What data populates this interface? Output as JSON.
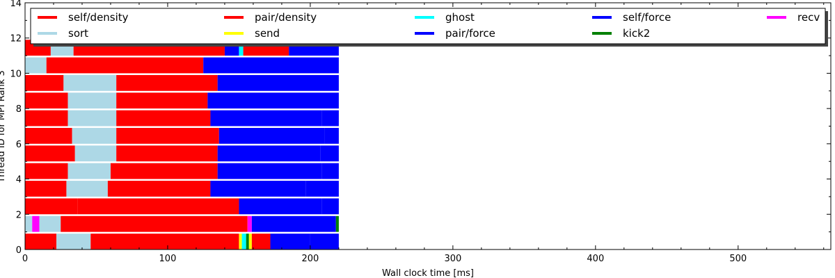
{
  "chart_data": {
    "type": "bar",
    "subtype": "thread-timeline",
    "xlabel": "Wall clock time [ms]",
    "ylabel": "Thread ID for MPI Rank 3",
    "xlim": [
      0,
      565
    ],
    "ylim": [
      0,
      14
    ],
    "x_ticks": [
      "0",
      "100",
      "200",
      "300",
      "400",
      "500"
    ],
    "y_ticks": [
      "0",
      "2",
      "4",
      "6",
      "8",
      "10",
      "12",
      "14"
    ],
    "legend_placement": "top",
    "legend": [
      {
        "name": "self/density",
        "color": "#ff0000"
      },
      {
        "name": "sort",
        "color": "#add8e6"
      },
      {
        "name": "pair/density",
        "color": "#ff0000"
      },
      {
        "name": "send",
        "color": "#ffff00"
      },
      {
        "name": "ghost",
        "color": "#00ffff"
      },
      {
        "name": "pair/force",
        "color": "#0000ff"
      },
      {
        "name": "self/force",
        "color": "#0000ff"
      },
      {
        "name": "kick2",
        "color": "#008000"
      },
      {
        "name": "recv",
        "color": "#ff00ff"
      }
    ],
    "thread_segments": [
      {
        "thread": 0,
        "segments": [
          {
            "start": 0,
            "end": 22,
            "task": "self/density"
          },
          {
            "start": 22,
            "end": 46,
            "task": "sort"
          },
          {
            "start": 46,
            "end": 150,
            "task": "pair/density"
          },
          {
            "start": 150,
            "end": 152,
            "task": "send"
          },
          {
            "start": 152,
            "end": 155,
            "task": "ghost"
          },
          {
            "start": 155,
            "end": 157,
            "task": "kick2"
          },
          {
            "start": 157,
            "end": 159,
            "task": "send"
          },
          {
            "start": 159,
            "end": 172,
            "task": "pair/density"
          },
          {
            "start": 172,
            "end": 200,
            "task": "pair/force"
          },
          {
            "start": 200,
            "end": 220,
            "task": "self/force"
          }
        ]
      },
      {
        "thread": 1,
        "segments": [
          {
            "start": 0,
            "end": 5,
            "task": "sort"
          },
          {
            "start": 5,
            "end": 10,
            "task": "recv"
          },
          {
            "start": 10,
            "end": 25,
            "task": "sort"
          },
          {
            "start": 25,
            "end": 156,
            "task": "pair/density"
          },
          {
            "start": 156,
            "end": 159,
            "task": "recv"
          },
          {
            "start": 159,
            "end": 218,
            "task": "pair/force"
          },
          {
            "start": 218,
            "end": 220,
            "task": "kick2"
          }
        ]
      },
      {
        "thread": 2,
        "segments": [
          {
            "start": 0,
            "end": 37,
            "task": "self/density"
          },
          {
            "start": 37,
            "end": 150,
            "task": "pair/density"
          },
          {
            "start": 150,
            "end": 208,
            "task": "pair/force"
          },
          {
            "start": 208,
            "end": 220,
            "task": "self/force"
          }
        ]
      },
      {
        "thread": 3,
        "segments": [
          {
            "start": 0,
            "end": 29,
            "task": "self/density"
          },
          {
            "start": 29,
            "end": 58,
            "task": "sort"
          },
          {
            "start": 58,
            "end": 130,
            "task": "pair/density"
          },
          {
            "start": 130,
            "end": 197,
            "task": "pair/force"
          },
          {
            "start": 197,
            "end": 220,
            "task": "self/force"
          }
        ]
      },
      {
        "thread": 4,
        "segments": [
          {
            "start": 0,
            "end": 30,
            "task": "self/density"
          },
          {
            "start": 30,
            "end": 60,
            "task": "sort"
          },
          {
            "start": 60,
            "end": 135,
            "task": "pair/density"
          },
          {
            "start": 135,
            "end": 208,
            "task": "pair/force"
          },
          {
            "start": 208,
            "end": 220,
            "task": "self/force"
          }
        ]
      },
      {
        "thread": 5,
        "segments": [
          {
            "start": 0,
            "end": 35,
            "task": "self/density"
          },
          {
            "start": 35,
            "end": 64,
            "task": "sort"
          },
          {
            "start": 64,
            "end": 135,
            "task": "pair/density"
          },
          {
            "start": 135,
            "end": 207,
            "task": "pair/force"
          },
          {
            "start": 207,
            "end": 220,
            "task": "self/force"
          }
        ]
      },
      {
        "thread": 6,
        "segments": [
          {
            "start": 0,
            "end": 33,
            "task": "self/density"
          },
          {
            "start": 33,
            "end": 64,
            "task": "sort"
          },
          {
            "start": 64,
            "end": 136,
            "task": "pair/density"
          },
          {
            "start": 136,
            "end": 210,
            "task": "pair/force"
          },
          {
            "start": 210,
            "end": 220,
            "task": "self/force"
          }
        ]
      },
      {
        "thread": 7,
        "segments": [
          {
            "start": 0,
            "end": 30,
            "task": "self/density"
          },
          {
            "start": 30,
            "end": 64,
            "task": "sort"
          },
          {
            "start": 64,
            "end": 130,
            "task": "pair/density"
          },
          {
            "start": 130,
            "end": 208,
            "task": "pair/force"
          },
          {
            "start": 208,
            "end": 220,
            "task": "self/force"
          }
        ]
      },
      {
        "thread": 8,
        "segments": [
          {
            "start": 0,
            "end": 30,
            "task": "self/density"
          },
          {
            "start": 30,
            "end": 64,
            "task": "sort"
          },
          {
            "start": 64,
            "end": 128,
            "task": "pair/density"
          },
          {
            "start": 128,
            "end": 220,
            "task": "pair/force"
          }
        ]
      },
      {
        "thread": 9,
        "segments": [
          {
            "start": 0,
            "end": 27,
            "task": "self/density"
          },
          {
            "start": 27,
            "end": 64,
            "task": "sort"
          },
          {
            "start": 64,
            "end": 135,
            "task": "pair/density"
          },
          {
            "start": 135,
            "end": 220,
            "task": "pair/force"
          }
        ]
      },
      {
        "thread": 10,
        "segments": [
          {
            "start": 0,
            "end": 15,
            "task": "sort"
          },
          {
            "start": 15,
            "end": 125,
            "task": "pair/density"
          },
          {
            "start": 125,
            "end": 220,
            "task": "pair/force"
          }
        ]
      },
      {
        "thread": 11,
        "segments": [
          {
            "start": 0,
            "end": 18,
            "task": "self/density"
          },
          {
            "start": 18,
            "end": 34,
            "task": "sort"
          },
          {
            "start": 34,
            "end": 140,
            "task": "pair/density"
          },
          {
            "start": 140,
            "end": 150,
            "task": "pair/force"
          },
          {
            "start": 150,
            "end": 153,
            "task": "ghost"
          },
          {
            "start": 153,
            "end": 185,
            "task": "pair/density"
          },
          {
            "start": 185,
            "end": 220,
            "task": "pair/force"
          }
        ]
      }
    ]
  }
}
